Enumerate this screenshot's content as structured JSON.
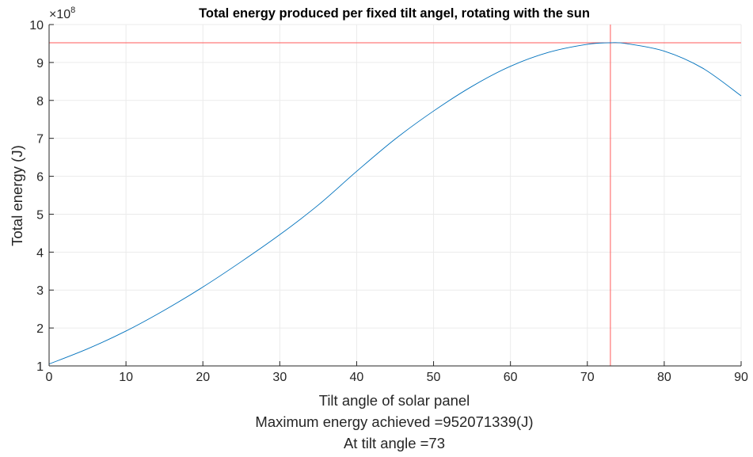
{
  "chart_data": {
    "type": "line",
    "title": "Total energy produced per fixed tilt angel, rotating with the sun",
    "xlabel": "Tilt angle of solar panel",
    "xlabel_lines": [
      "Tilt angle of solar panel",
      "Maximum energy achieved =952071339(J)",
      "At tilt angle =73"
    ],
    "ylabel": "Total energy (J)",
    "y_exponent_label": "×10",
    "y_exponent_power": "8",
    "xlim": [
      0,
      90
    ],
    "ylim": [
      1,
      10
    ],
    "y_scale_factor": 100000000,
    "grid": true,
    "x_ticks": [
      0,
      10,
      20,
      30,
      40,
      50,
      60,
      70,
      80,
      90
    ],
    "x_tick_labels": [
      "0",
      "10",
      "20",
      "30",
      "40",
      "50",
      "60",
      "70",
      "80",
      "90"
    ],
    "y_ticks": [
      1,
      2,
      3,
      4,
      5,
      6,
      7,
      8,
      9,
      10
    ],
    "y_tick_labels": [
      "1",
      "2",
      "3",
      "4",
      "5",
      "6",
      "7",
      "8",
      "9",
      "10"
    ],
    "series": [
      {
        "color": "#0072bd",
        "x": [
          0,
          5,
          10,
          15,
          20,
          25,
          30,
          35,
          40,
          45,
          50,
          55,
          60,
          65,
          70,
          73,
          75,
          80,
          85,
          90
        ],
        "y": [
          1.05,
          1.45,
          1.92,
          2.47,
          3.08,
          3.75,
          4.46,
          5.24,
          6.13,
          6.98,
          7.72,
          8.37,
          8.9,
          9.27,
          9.48,
          9.52,
          9.5,
          9.3,
          8.85,
          8.12
        ]
      }
    ],
    "reference_lines": [
      {
        "orientation": "horizontal",
        "value": 9.52071339,
        "color": "#ff5a5a"
      },
      {
        "orientation": "vertical",
        "value": 73,
        "color": "#ff5a5a"
      }
    ],
    "colors": {
      "axis": "#262626",
      "grid": "#ebebeb",
      "line": "#0072bd",
      "reference": "#ff5a5a"
    }
  }
}
